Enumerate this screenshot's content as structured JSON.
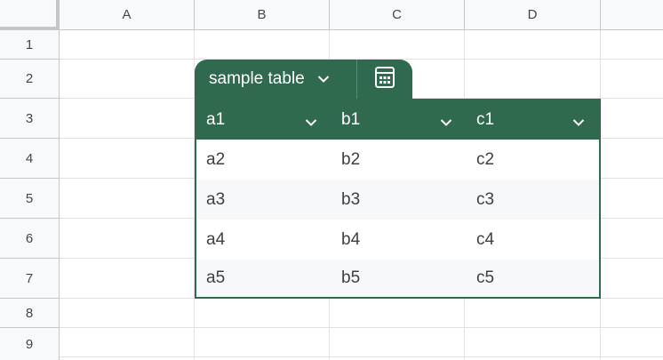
{
  "columns": [
    "A",
    "B",
    "C",
    "D"
  ],
  "rows": [
    "1",
    "2",
    "3",
    "4",
    "5",
    "6",
    "7",
    "8",
    "9"
  ],
  "table": {
    "name": "sample table",
    "name_chevron_icon": "chevron-down-icon",
    "convert_icon": "calculator-grid-icon",
    "header_color": "#2f6a4f",
    "headers": [
      "a1",
      "b1",
      "c1"
    ],
    "body": [
      [
        "a2",
        "b2",
        "c2"
      ],
      [
        "a3",
        "b3",
        "c3"
      ],
      [
        "a4",
        "b4",
        "c4"
      ],
      [
        "a5",
        "b5",
        "c5"
      ]
    ]
  }
}
